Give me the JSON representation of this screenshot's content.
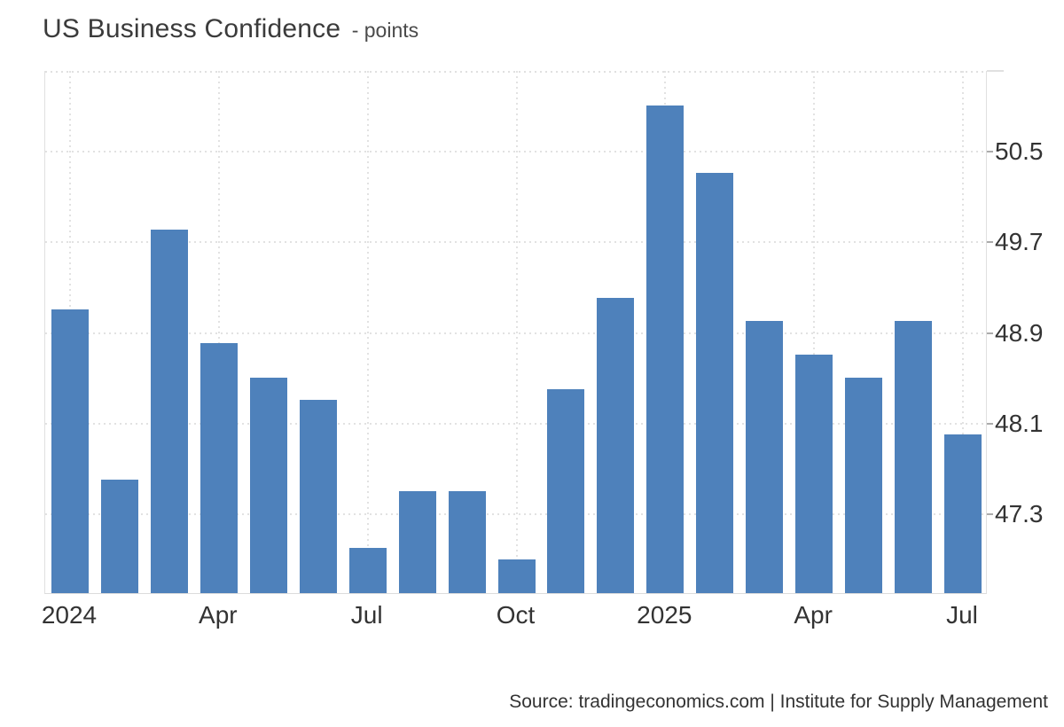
{
  "title": {
    "main": "US Business Confidence",
    "suffix": "- points"
  },
  "source": "Source: tradingeconomics.com | Institute for Supply Management",
  "chart_data": {
    "type": "bar",
    "title": "US Business Confidence",
    "subtitle": "points",
    "xlabel": "",
    "ylabel": "points",
    "x": [
      "Jan 2024",
      "Feb 2024",
      "Mar 2024",
      "Apr 2024",
      "May 2024",
      "Jun 2024",
      "Jul 2024",
      "Aug 2024",
      "Sep 2024",
      "Oct 2024",
      "Nov 2024",
      "Dec 2024",
      "Jan 2025",
      "Feb 2025",
      "Mar 2025",
      "Apr 2025",
      "May 2025",
      "Jun 2025",
      "Jul 2025"
    ],
    "values": [
      49.1,
      47.6,
      49.8,
      48.8,
      48.5,
      48.3,
      47.0,
      47.5,
      47.5,
      46.9,
      48.4,
      49.2,
      50.9,
      50.3,
      49.0,
      48.7,
      48.5,
      49.0,
      48.0
    ],
    "x_ticks": [
      {
        "index": 0,
        "label": "2024"
      },
      {
        "index": 3,
        "label": "Apr"
      },
      {
        "index": 6,
        "label": "Jul"
      },
      {
        "index": 9,
        "label": "Oct"
      },
      {
        "index": 12,
        "label": "2025"
      },
      {
        "index": 15,
        "label": "Apr"
      },
      {
        "index": 18,
        "label": "Jul"
      }
    ],
    "y_ticks": [
      50.5,
      49.7,
      48.9,
      48.1,
      47.3
    ],
    "ylim": [
      46.6,
      51.21
    ],
    "grid": "dotted",
    "y_axis_side": "right",
    "legend": "none",
    "colors": {
      "bar": "#4e81bb",
      "grid": "#e2e2e2",
      "axis_border": "#e0e0e0",
      "tick": "#ababab",
      "text": "#333333",
      "title_text": "#3b3b3b"
    }
  }
}
